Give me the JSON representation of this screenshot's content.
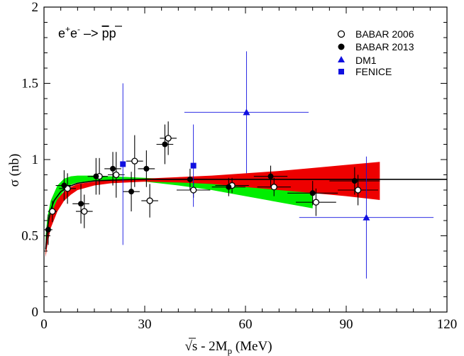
{
  "chart_data": {
    "type": "scatter",
    "title": "",
    "annotation": "e+e- -> pp̄",
    "annotation_parts": {
      "base1": "e",
      "sup1": "+",
      "base2": "e",
      "sup2": "-",
      "arrow": " –> ",
      "pbar": "p",
      "p": "p"
    },
    "xlabel": "√s - 2M_p (MeV)",
    "xlabel_parts": {
      "sqrt": "√",
      "s": "s",
      "rest": " - 2M",
      "sub": "p",
      "unit": " (MeV)"
    },
    "ylabel": "σ (nb)",
    "xlim": [
      0,
      120
    ],
    "ylim": [
      0,
      2
    ],
    "xticks": [
      0,
      30,
      60,
      90,
      120
    ],
    "yticks": [
      0,
      0.5,
      1,
      1.5,
      2
    ],
    "xtick_labels": [
      "0",
      "30",
      "60",
      "90",
      "120"
    ],
    "ytick_labels": [
      "0",
      "0.5",
      "1",
      "1.5",
      "2"
    ],
    "legend_position": "top-right",
    "legend": [
      "BABAR 2006",
      "BABAR 2013",
      "DM1",
      "FENICE"
    ],
    "colors": {
      "black": "#000000",
      "blue": "#1010e0",
      "green": "#00ee00",
      "red": "#ee0000"
    },
    "series": [
      {
        "name": "BABAR 2006",
        "marker": "open-circle",
        "color": "#000000",
        "points": [
          {
            "x": 2.5,
            "y": 0.66,
            "ex": 1.3,
            "ey": 0.07
          },
          {
            "x": 7,
            "y": 0.81,
            "ex": 2.5,
            "ey": 0.1
          },
          {
            "x": 12,
            "y": 0.66,
            "ex": 2.5,
            "ey": 0.11
          },
          {
            "x": 16.5,
            "y": 0.89,
            "ex": 2.5,
            "ey": 0.12
          },
          {
            "x": 21.5,
            "y": 0.9,
            "ex": 2.5,
            "ey": 0.15
          },
          {
            "x": 27,
            "y": 0.99,
            "ex": 2.5,
            "ey": 0.17
          },
          {
            "x": 31.5,
            "y": 0.73,
            "ex": 2.5,
            "ey": 0.11
          },
          {
            "x": 37,
            "y": 1.14,
            "ex": 2.5,
            "ey": 0.11
          },
          {
            "x": 44.5,
            "y": 0.8,
            "ex": 5,
            "ey": 0.05
          },
          {
            "x": 56,
            "y": 0.83,
            "ex": 5,
            "ey": 0.05
          },
          {
            "x": 68.5,
            "y": 0.82,
            "ex": 5,
            "ey": 0.06
          },
          {
            "x": 81,
            "y": 0.72,
            "ex": 6,
            "ey": 0.09
          },
          {
            "x": 93.5,
            "y": 0.8,
            "ex": 6,
            "ey": 0.1
          }
        ]
      },
      {
        "name": "BABAR 2013",
        "marker": "filled-circle",
        "color": "#000000",
        "points": [
          {
            "x": 1.25,
            "y": 0.54,
            "ex": 1.25,
            "ey": 0.1
          },
          {
            "x": 6,
            "y": 0.83,
            "ex": 2.5,
            "ey": 0.1
          },
          {
            "x": 11,
            "y": 0.71,
            "ex": 2.5,
            "ey": 0.13
          },
          {
            "x": 15.5,
            "y": 0.89,
            "ex": 2.5,
            "ey": 0.12
          },
          {
            "x": 20.5,
            "y": 0.94,
            "ex": 2.5,
            "ey": 0.11
          },
          {
            "x": 26,
            "y": 0.79,
            "ex": 2.5,
            "ey": 0.13
          },
          {
            "x": 30.5,
            "y": 0.94,
            "ex": 2.5,
            "ey": 0.12
          },
          {
            "x": 36,
            "y": 1.1,
            "ex": 2.5,
            "ey": 0.13
          },
          {
            "x": 43.5,
            "y": 0.87,
            "ex": 5,
            "ey": 0.07
          },
          {
            "x": 55,
            "y": 0.82,
            "ex": 5,
            "ey": 0.06
          },
          {
            "x": 67.5,
            "y": 0.89,
            "ex": 5,
            "ey": 0.07
          },
          {
            "x": 80,
            "y": 0.78,
            "ex": 7.5,
            "ey": 0.08
          },
          {
            "x": 92.5,
            "y": 0.86,
            "ex": 7.5,
            "ey": 0.09
          }
        ]
      },
      {
        "name": "DM1",
        "marker": "filled-triangle",
        "color": "#1010e0",
        "points": [
          {
            "x": 60.3,
            "y": 1.31,
            "ex": 18.5,
            "ey": 0.4
          },
          {
            "x": 96,
            "y": 0.62,
            "ex": 20,
            "ey": 0.4
          }
        ]
      },
      {
        "name": "FENICE",
        "marker": "filled-square",
        "color": "#1010e0",
        "points": [
          {
            "x": 23.5,
            "y": 0.97,
            "ex": 0,
            "ey": 0.53
          },
          {
            "x": 44.5,
            "y": 0.96,
            "ex": 0,
            "ey": 0.27
          }
        ]
      }
    ],
    "curves": [
      {
        "name": "black-line",
        "color": "#000000",
        "x": [
          0.5,
          1,
          2,
          3,
          5,
          7,
          10,
          15,
          20,
          25,
          30,
          45,
          60,
          80,
          100,
          120
        ],
        "y": [
          0.41,
          0.55,
          0.67,
          0.73,
          0.79,
          0.82,
          0.845,
          0.86,
          0.865,
          0.868,
          0.87,
          0.87,
          0.87,
          0.87,
          0.87,
          0.87
        ]
      },
      {
        "name": "green-band",
        "color": "#00ee00",
        "x": [
          0.5,
          1,
          2,
          4,
          6,
          8,
          10,
          15,
          20,
          30,
          40,
          50,
          60,
          70,
          80
        ],
        "lower": [
          0.38,
          0.47,
          0.58,
          0.72,
          0.8,
          0.835,
          0.85,
          0.86,
          0.86,
          0.855,
          0.83,
          0.8,
          0.76,
          0.72,
          0.68
        ],
        "upper": [
          0.5,
          0.62,
          0.73,
          0.83,
          0.875,
          0.89,
          0.895,
          0.895,
          0.89,
          0.88,
          0.87,
          0.86,
          0.84,
          0.82,
          0.8
        ]
      },
      {
        "name": "red-band",
        "color": "#ee0000",
        "x": [
          0.5,
          1,
          2,
          4,
          6,
          8,
          10,
          15,
          20,
          30,
          40,
          50,
          60,
          70,
          80,
          90,
          100
        ],
        "lower": [
          0.36,
          0.44,
          0.55,
          0.66,
          0.73,
          0.77,
          0.8,
          0.83,
          0.845,
          0.855,
          0.85,
          0.84,
          0.82,
          0.8,
          0.78,
          0.76,
          0.735
        ],
        "upper": [
          0.45,
          0.54,
          0.64,
          0.74,
          0.79,
          0.82,
          0.84,
          0.855,
          0.865,
          0.875,
          0.885,
          0.895,
          0.91,
          0.925,
          0.945,
          0.965,
          0.985
        ]
      }
    ]
  }
}
